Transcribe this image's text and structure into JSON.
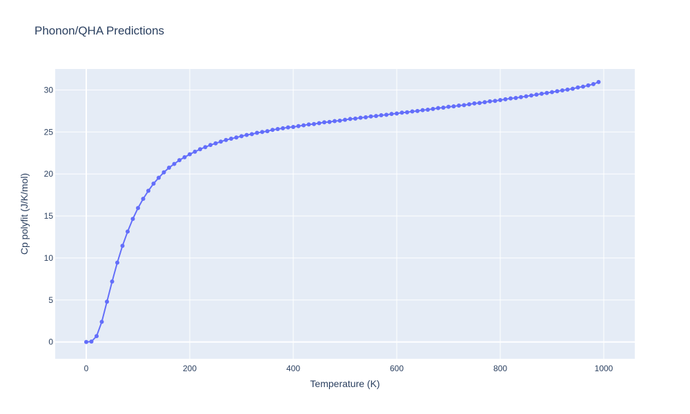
{
  "chart_data": {
    "type": "line",
    "title": "Phonon/QHA Predictions",
    "xlabel": "Temperature (K)",
    "ylabel": "Cp polyfit (J/K/mol)",
    "xlim": [
      -60,
      1060
    ],
    "ylim": [
      -2,
      32.5
    ],
    "xticks": [
      0,
      200,
      400,
      600,
      800,
      1000
    ],
    "yticks": [
      0,
      5,
      10,
      15,
      20,
      25,
      30
    ],
    "grid": true,
    "series": [
      {
        "name": "",
        "color": "#636efa",
        "mode": "lines+markers",
        "x": [
          0,
          10,
          20,
          30,
          40,
          50,
          60,
          70,
          80,
          90,
          100,
          110,
          120,
          130,
          140,
          150,
          160,
          170,
          180,
          190,
          200,
          210,
          220,
          230,
          240,
          250,
          260,
          270,
          280,
          290,
          300,
          310,
          320,
          330,
          340,
          350,
          360,
          370,
          380,
          390,
          400,
          410,
          420,
          430,
          440,
          450,
          460,
          470,
          480,
          490,
          500,
          510,
          520,
          530,
          540,
          550,
          560,
          570,
          580,
          590,
          600,
          610,
          620,
          630,
          640,
          650,
          660,
          670,
          680,
          690,
          700,
          710,
          720,
          730,
          740,
          750,
          760,
          770,
          780,
          790,
          800,
          810,
          820,
          830,
          840,
          850,
          860,
          870,
          880,
          890,
          900,
          910,
          920,
          930,
          940,
          950,
          960,
          970,
          980,
          990
        ],
        "y": [
          0.0,
          0.05,
          0.7,
          2.4,
          4.8,
          7.2,
          9.45,
          11.45,
          13.15,
          14.65,
          15.95,
          17.05,
          18.0,
          18.85,
          19.55,
          20.2,
          20.75,
          21.2,
          21.65,
          22.0,
          22.35,
          22.65,
          22.95,
          23.2,
          23.45,
          23.65,
          23.85,
          24.05,
          24.2,
          24.35,
          24.5,
          24.65,
          24.75,
          24.9,
          25.0,
          25.1,
          25.25,
          25.35,
          25.45,
          25.55,
          25.6,
          25.7,
          25.8,
          25.9,
          25.95,
          26.05,
          26.15,
          26.2,
          26.3,
          26.35,
          26.45,
          26.55,
          26.6,
          26.7,
          26.75,
          26.85,
          26.9,
          27.0,
          27.05,
          27.15,
          27.2,
          27.3,
          27.35,
          27.45,
          27.5,
          27.6,
          27.65,
          27.75,
          27.85,
          27.9,
          28.0,
          28.05,
          28.15,
          28.2,
          28.3,
          28.4,
          28.45,
          28.55,
          28.65,
          28.7,
          28.8,
          28.9,
          29.0,
          29.05,
          29.15,
          29.25,
          29.35,
          29.45,
          29.55,
          29.65,
          29.75,
          29.85,
          29.95,
          30.05,
          30.15,
          30.3,
          30.4,
          30.55,
          30.7,
          30.95
        ]
      }
    ]
  }
}
